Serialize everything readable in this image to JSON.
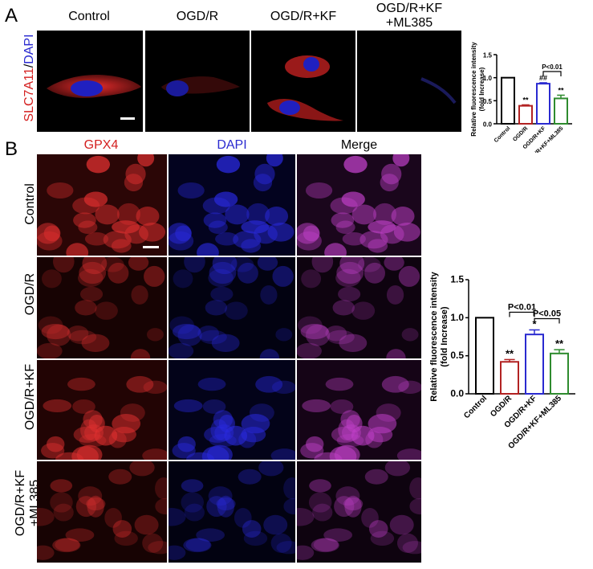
{
  "panelA": {
    "letter": "A",
    "ylabel_red": "SLC7A11",
    "ylabel_sep": "/",
    "ylabel_blue": "DAPI",
    "columns": [
      "Control",
      "OGD/R",
      "OGD/R+KF",
      "OGD/R+KF\n+ML385"
    ],
    "column_line1": [
      "Control",
      "OGD/R",
      "OGD/R+KF",
      "OGD/R+KF"
    ],
    "column_line2": [
      "",
      "",
      "",
      "+ML385"
    ]
  },
  "panelB": {
    "letter": "B",
    "columns": [
      "GPX4",
      "DAPI",
      "Merge"
    ],
    "column_colors": [
      "#d42020",
      "#2a2ad0",
      "#000000"
    ],
    "rows": [
      "Control",
      "OGD/R",
      "OGD/R+KF",
      "OGD/R+KF\n+ML385"
    ],
    "row_line1": [
      "Control",
      "OGD/R",
      "OGD/R+KF",
      "OGD/R+KF"
    ],
    "row_line2": [
      "",
      "",
      "",
      "+ML385"
    ]
  },
  "chart_data": [
    {
      "type": "bar",
      "ylabel": "Relative fluorescence intensity (fold Increase)",
      "ylabel_line1": "Relative fluorescence intensity",
      "ylabel_line2": "(fold Increase)",
      "categories": [
        "Control",
        "OGD/R",
        "OGD/R+KF",
        "OGD/R+KF+ML385"
      ],
      "values": [
        1.0,
        0.39,
        0.87,
        0.55
      ],
      "errors": [
        0.0,
        0.02,
        0.02,
        0.07
      ],
      "colors": [
        "#000000",
        "#b22222",
        "#2a2ad0",
        "#2e8b2e"
      ],
      "annotations": [
        "",
        "**",
        "##",
        "**"
      ],
      "comparison": {
        "from": 2,
        "to": 3,
        "label": "P<0.01"
      },
      "ylim": [
        0,
        1.5
      ],
      "yticks": [
        "0.0",
        "0.5",
        "1.0",
        "1.5"
      ]
    },
    {
      "type": "bar",
      "ylabel": "Relative fluorescence intensity (fold Increase)",
      "ylabel_line1": "Relative fluorescence intensity",
      "ylabel_line2": "(fold Increase)",
      "categories": [
        "Control",
        "OGD/R",
        "OGD/R+KF",
        "OGD/R+KF+ML385"
      ],
      "values": [
        1.0,
        0.42,
        0.78,
        0.53
      ],
      "errors": [
        0.0,
        0.03,
        0.06,
        0.05
      ],
      "colors": [
        "#000000",
        "#b22222",
        "#2a2ad0",
        "#2e8b2e"
      ],
      "annotations": [
        "",
        "**",
        "*",
        "**"
      ],
      "comparisons": [
        {
          "from": 1,
          "to": 2,
          "label": "P<0.01"
        },
        {
          "from": 2,
          "to": 3,
          "label": "P<0.05"
        }
      ],
      "ylim": [
        0,
        1.5
      ],
      "yticks": [
        "0.0",
        "0.5",
        "1.0",
        "1.5"
      ]
    }
  ]
}
